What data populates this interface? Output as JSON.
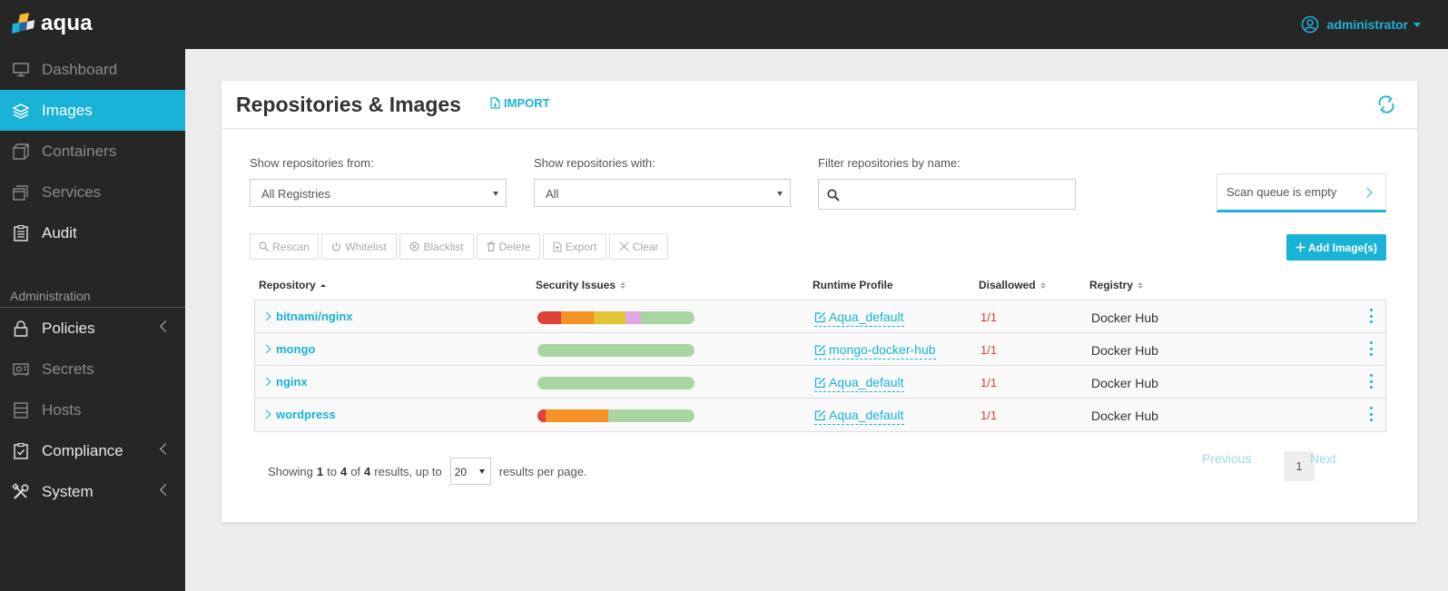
{
  "app": {
    "name": "aqua"
  },
  "user": {
    "name": "administrator"
  },
  "sidebar": {
    "items": [
      {
        "label": "Dashboard"
      },
      {
        "label": "Images"
      },
      {
        "label": "Containers"
      },
      {
        "label": "Services"
      },
      {
        "label": "Audit"
      }
    ],
    "section_label": "Administration",
    "admin_items": [
      {
        "label": "Policies"
      },
      {
        "label": "Secrets"
      },
      {
        "label": "Hosts"
      },
      {
        "label": "Compliance"
      },
      {
        "label": "System"
      }
    ]
  },
  "page": {
    "title": "Repositories & Images",
    "import_label": "IMPORT"
  },
  "filters": {
    "from_label": "Show repositories from:",
    "from_value": "All Registries",
    "with_label": "Show repositories with:",
    "with_value": "All",
    "name_label": "Filter repositories by name:",
    "name_value": "",
    "scan_queue": "Scan queue is empty"
  },
  "toolbar": {
    "rescan": "Rescan",
    "whitelist": "Whitelist",
    "blacklist": "Blacklist",
    "delete": "Delete",
    "export": "Export",
    "clear": "Clear",
    "add": "Add Image(s)"
  },
  "table": {
    "columns": {
      "repository": "Repository",
      "security": "Security Issues",
      "runtime": "Runtime Profile",
      "disallowed": "Disallowed",
      "registry": "Registry"
    },
    "rows": [
      {
        "repository": "bitnami/nginx",
        "profile": "Aqua_default",
        "disallowed": "1/1",
        "registry": "Docker Hub"
      },
      {
        "repository": "mongo",
        "profile": "mongo-docker-hub",
        "disallowed": "1/1",
        "registry": "Docker Hub"
      },
      {
        "repository": "nginx",
        "profile": "Aqua_default",
        "disallowed": "1/1",
        "registry": "Docker Hub"
      },
      {
        "repository": "wordpress",
        "profile": "Aqua_default",
        "disallowed": "1/1",
        "registry": "Docker Hub"
      }
    ]
  },
  "footer": {
    "showing": "Showing",
    "from": "1",
    "to_word": "to",
    "to": "4",
    "of_word": "of",
    "total": "4",
    "results_text": "results, up to",
    "per_page": "20",
    "per_page_text": "results per page.",
    "previous": "Previous",
    "page": "1",
    "next": "Next"
  },
  "colors": {
    "accent": "#1ab2d6",
    "critical": "#e0413a",
    "high": "#f39325",
    "medium": "#e2c534",
    "low": "#dea9e2",
    "ok": "#a8d5a2"
  }
}
